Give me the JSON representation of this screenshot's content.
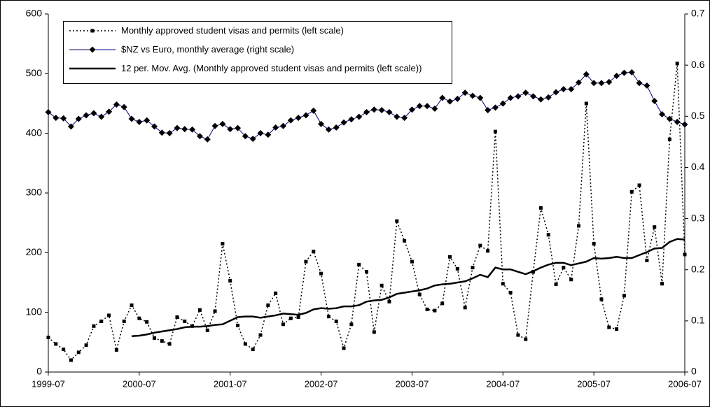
{
  "chart_data": {
    "type": "line",
    "categories": [
      "1999-07",
      null,
      null,
      null,
      null,
      null,
      null,
      null,
      null,
      null,
      null,
      null,
      "2000-07",
      null,
      null,
      null,
      null,
      null,
      null,
      null,
      null,
      null,
      null,
      null,
      "2001-07",
      null,
      null,
      null,
      null,
      null,
      null,
      null,
      null,
      null,
      null,
      null,
      "2002-07",
      null,
      null,
      null,
      null,
      null,
      null,
      null,
      null,
      null,
      null,
      null,
      "2003-07",
      null,
      null,
      null,
      null,
      null,
      null,
      null,
      null,
      null,
      null,
      null,
      "2004-07",
      null,
      null,
      null,
      null,
      null,
      null,
      null,
      null,
      null,
      null,
      null,
      "2005-07",
      null,
      null,
      null,
      null,
      null,
      null,
      null,
      null,
      null,
      null,
      null,
      "2006-07"
    ],
    "series": [
      {
        "name": "Monthly approved student visas and permits (left scale)",
        "color": "#000000",
        "line_style": "dotted",
        "line_width": 1.5,
        "marker": "square",
        "axis": "y",
        "values": [
          58,
          47,
          38,
          20,
          33,
          45,
          77,
          85,
          95,
          37,
          85,
          112,
          90,
          84,
          57,
          52,
          47,
          92,
          85,
          77,
          104,
          70,
          102,
          215,
          153,
          78,
          47,
          38,
          62,
          112,
          132,
          80,
          90,
          92,
          185,
          202,
          165,
          93,
          85,
          40,
          80,
          180,
          168,
          67,
          145,
          118,
          253,
          220,
          185,
          130,
          105,
          103,
          115,
          193,
          173,
          108,
          175,
          212,
          203,
          403,
          148,
          133,
          62,
          55,
          168,
          275,
          230,
          147,
          175,
          155,
          245,
          450,
          215,
          122,
          75,
          72,
          128,
          302,
          313,
          187,
          243,
          148,
          390,
          517,
          197
        ]
      },
      {
        "name": "$NZ vs Euro, monthly average (right scale)",
        "color": "#000080",
        "line_style": "solid",
        "line_width": 1,
        "marker": "diamond",
        "axis": "y2",
        "values": [
          0.508,
          0.497,
          0.496,
          0.48,
          0.495,
          0.502,
          0.506,
          0.499,
          0.509,
          0.523,
          0.518,
          0.495,
          0.489,
          0.492,
          0.48,
          0.468,
          0.467,
          0.477,
          0.475,
          0.474,
          0.461,
          0.455,
          0.481,
          0.485,
          0.475,
          0.477,
          0.461,
          0.456,
          0.467,
          0.464,
          0.478,
          0.481,
          0.492,
          0.497,
          0.502,
          0.511,
          0.485,
          0.474,
          0.478,
          0.488,
          0.494,
          0.499,
          0.508,
          0.513,
          0.512,
          0.508,
          0.499,
          0.497,
          0.513,
          0.52,
          0.52,
          0.515,
          0.536,
          0.529,
          0.534,
          0.546,
          0.54,
          0.536,
          0.512,
          0.517,
          0.525,
          0.536,
          0.539,
          0.546,
          0.539,
          0.533,
          0.537,
          0.547,
          0.553,
          0.553,
          0.566,
          0.582,
          0.565,
          0.565,
          0.567,
          0.579,
          0.585,
          0.586,
          0.565,
          0.56,
          0.53,
          0.504,
          0.495,
          0.489,
          0.484
        ]
      },
      {
        "name": "12 per. Mov. Avg. (Monthly approved student visas and permits (left scale))",
        "color": "#000000",
        "line_style": "solid",
        "line_width": 2.5,
        "axis": "y",
        "values": [
          null,
          null,
          null,
          null,
          null,
          null,
          null,
          null,
          null,
          null,
          null,
          60,
          61,
          63,
          66,
          68,
          70,
          72,
          75,
          76,
          76,
          77,
          79,
          80,
          86,
          92,
          93,
          93,
          91,
          93,
          95,
          98,
          97,
          96,
          99,
          105,
          107,
          106,
          107,
          110,
          110,
          112,
          118,
          120,
          121,
          125,
          131,
          133,
          135,
          137,
          140,
          145,
          147,
          148,
          150,
          152,
          157,
          163,
          159,
          175,
          172,
          172,
          168,
          164,
          169,
          175,
          180,
          183,
          183,
          179,
          182,
          185,
          191,
          190,
          191,
          193,
          191,
          191,
          196,
          201,
          207,
          208,
          218,
          223,
          222
        ]
      }
    ],
    "ylim": [
      0,
      600
    ],
    "yticks": [
      0,
      100,
      200,
      300,
      400,
      500,
      600
    ],
    "y2lim": [
      0,
      0.7
    ],
    "y2ticks": [
      0,
      0.1,
      0.2,
      0.3,
      0.4,
      0.5,
      0.6,
      0.7
    ]
  }
}
